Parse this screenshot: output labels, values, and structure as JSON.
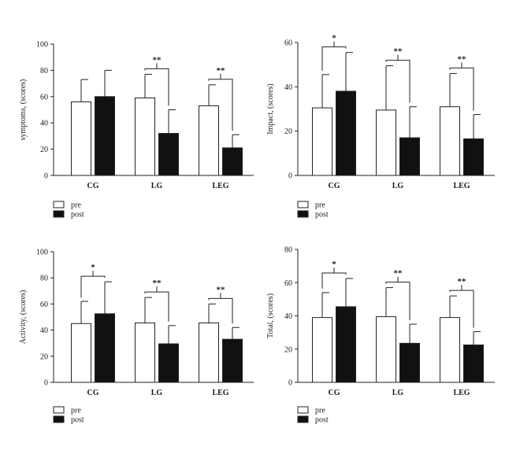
{
  "chart_data": [
    {
      "type": "bar",
      "ylabel": "symptoms, (scores)",
      "ylim": [
        0,
        100
      ],
      "yticks": [
        0,
        20,
        40,
        60,
        80,
        100
      ],
      "categories": [
        "CG",
        "LG",
        "LEG"
      ],
      "series": [
        {
          "name": "pre",
          "values": [
            56,
            59,
            53
          ],
          "errors": [
            17,
            18,
            16
          ],
          "color": "#ffffff"
        },
        {
          "name": "post",
          "values": [
            60,
            32,
            21
          ],
          "errors": [
            20,
            18,
            10
          ],
          "color": "#111111"
        }
      ],
      "significance": [
        "",
        "**",
        "**"
      ],
      "legend": [
        "pre",
        "post"
      ]
    },
    {
      "type": "bar",
      "ylabel": "Impact, (scores)",
      "ylim": [
        0,
        60
      ],
      "yticks": [
        0,
        20,
        40,
        60
      ],
      "categories": [
        "CG",
        "LG",
        "LEG"
      ],
      "series": [
        {
          "name": "pre",
          "values": [
            30.5,
            29.5,
            31
          ],
          "errors": [
            15,
            20,
            15
          ],
          "color": "#ffffff"
        },
        {
          "name": "post",
          "values": [
            38,
            17,
            16.5
          ],
          "errors": [
            17.5,
            14,
            11
          ],
          "color": "#111111"
        }
      ],
      "significance": [
        "*",
        "**",
        "**"
      ],
      "legend": [
        "pre",
        "post"
      ]
    },
    {
      "type": "bar",
      "ylabel": "Activity, (scores)",
      "ylim": [
        0,
        100
      ],
      "yticks": [
        0,
        20,
        40,
        60,
        80,
        100
      ],
      "categories": [
        "CG",
        "LG",
        "LEG"
      ],
      "series": [
        {
          "name": "pre",
          "values": [
            45,
            45.5,
            45.5
          ],
          "errors": [
            17,
            19.5,
            14.5
          ],
          "color": "#ffffff"
        },
        {
          "name": "post",
          "values": [
            52.5,
            29.5,
            33
          ],
          "errors": [
            24.5,
            14,
            9
          ],
          "color": "#111111"
        }
      ],
      "significance": [
        "*",
        "**",
        "**"
      ],
      "legend": [
        "pre",
        "post"
      ]
    },
    {
      "type": "bar",
      "ylabel": "Total, (scores)",
      "ylim": [
        0,
        80
      ],
      "yticks": [
        0,
        20,
        40,
        60,
        80
      ],
      "categories": [
        "CG",
        "LG",
        "LEG"
      ],
      "series": [
        {
          "name": "pre",
          "values": [
            39,
            39.5,
            39
          ],
          "errors": [
            15,
            17.5,
            13
          ],
          "color": "#ffffff"
        },
        {
          "name": "post",
          "values": [
            45.5,
            23.5,
            22.5
          ],
          "errors": [
            17,
            11.5,
            8
          ],
          "color": "#111111"
        }
      ],
      "significance": [
        "*",
        "**",
        "**"
      ],
      "legend": [
        "pre",
        "post"
      ]
    }
  ]
}
